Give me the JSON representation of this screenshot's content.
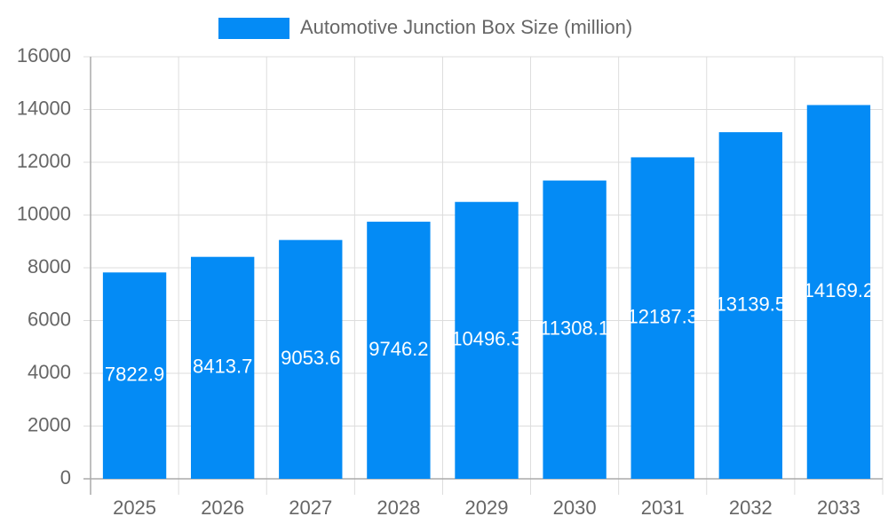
{
  "chart_data": {
    "type": "bar",
    "categories": [
      "2025",
      "2026",
      "2027",
      "2028",
      "2029",
      "2030",
      "2031",
      "2032",
      "2033"
    ],
    "series": [
      {
        "name": "Automotive Junction Box Size (million)",
        "color": "#048bf5",
        "values": [
          7822.9,
          8413.7,
          9053.6,
          9746.2,
          10496.3,
          11308.1,
          12187.3,
          13139.5,
          14169.2
        ]
      }
    ],
    "ylim": [
      0,
      16000
    ],
    "yticks": [
      0,
      2000,
      4000,
      6000,
      8000,
      10000,
      12000,
      14000,
      16000
    ],
    "grid": true,
    "legend": "top"
  }
}
